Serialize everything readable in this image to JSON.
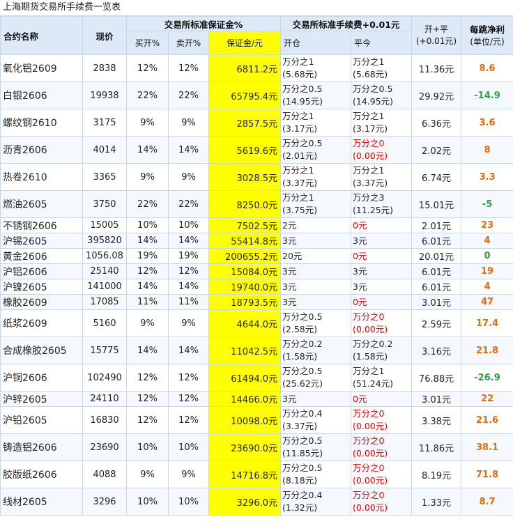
{
  "title": "上海期货交易所手续费一览表",
  "headers": {
    "name": "合约名称",
    "price": "现价",
    "margin_group": "交易所标准保证金%",
    "buy_open": "买开%",
    "sell_open": "卖开%",
    "margin": "保证金/元",
    "fee_group": "交易所标准手续费+0.01元",
    "open": "开仓",
    "close": "平今",
    "total_line1": "开+平",
    "total_line2": "(+0.01元)",
    "tick_line1": "每跳净利",
    "tick_line2": "(单位/元)"
  },
  "colors": {
    "header_bg": "#dde9f6",
    "margin_highlight": "#ffff00",
    "zero_fee": "#e00000",
    "tick_positive": "#e46c0a",
    "tick_negative": "#2ea043"
  },
  "rows": [
    {
      "name": "氧化铝2609",
      "price": "2838",
      "buy": "12%",
      "sell": "12%",
      "margin": "6811.2元",
      "open1": "万分之1",
      "open2": "(5.68元)",
      "close1": "万分之1",
      "close2": "(5.68元)",
      "close_zero": false,
      "total": "11.36元",
      "tick": "8.6",
      "sign": "pos"
    },
    {
      "name": "白银2606",
      "price": "19938",
      "buy": "22%",
      "sell": "22%",
      "margin": "65795.4元",
      "open1": "万分之0.5",
      "open2": "(14.95元)",
      "close1": "万分之0.5",
      "close2": "(14.95元)",
      "close_zero": false,
      "total": "29.92元",
      "tick": "-14.9",
      "sign": "neg"
    },
    {
      "name": "螺纹钢2610",
      "price": "3175",
      "buy": "9%",
      "sell": "9%",
      "margin": "2857.5元",
      "open1": "万分之1",
      "open2": "(3.17元)",
      "close1": "万分之1",
      "close2": "(3.17元)",
      "close_zero": false,
      "total": "6.36元",
      "tick": "3.6",
      "sign": "pos"
    },
    {
      "name": "沥青2606",
      "price": "4014",
      "buy": "14%",
      "sell": "14%",
      "margin": "5619.6元",
      "open1": "万分之0.5",
      "open2": "(2.01元)",
      "close1": "万分之0",
      "close2": "(0.00元)",
      "close_zero": true,
      "total": "2.02元",
      "tick": "8",
      "sign": "pos"
    },
    {
      "name": "热卷2610",
      "price": "3365",
      "buy": "9%",
      "sell": "9%",
      "margin": "3028.5元",
      "open1": "万分之1",
      "open2": "(3.37元)",
      "close1": "万分之1",
      "close2": "(3.37元)",
      "close_zero": false,
      "total": "6.74元",
      "tick": "3.3",
      "sign": "pos"
    },
    {
      "name": "燃油2605",
      "price": "3750",
      "buy": "22%",
      "sell": "22%",
      "margin": "8250.0元",
      "open1": "万分之1",
      "open2": "(3.75元)",
      "close1": "万分之3",
      "close2": "(11.25元)",
      "close_zero": false,
      "total": "15.01元",
      "tick": "-5",
      "sign": "neg"
    },
    {
      "name": "不锈钢2606",
      "price": "15005",
      "buy": "10%",
      "sell": "10%",
      "margin": "7502.5元",
      "open1": "2元",
      "open2": "",
      "close1": "0元",
      "close2": "",
      "close_zero": true,
      "total": "2.01元",
      "tick": "23",
      "sign": "pos"
    },
    {
      "name": "沪锡2605",
      "price": "395820",
      "buy": "14%",
      "sell": "14%",
      "margin": "55414.8元",
      "open1": "3元",
      "open2": "",
      "close1": "3元",
      "close2": "",
      "close_zero": false,
      "total": "6.01元",
      "tick": "4",
      "sign": "pos"
    },
    {
      "name": "黄金2606",
      "price": "1056.08",
      "buy": "19%",
      "sell": "19%",
      "margin": "200655.2元",
      "open1": "20元",
      "open2": "",
      "close1": "0元",
      "close2": "",
      "close_zero": true,
      "total": "20.01元",
      "tick": "0",
      "sign": "null"
    },
    {
      "name": "沪铝2606",
      "price": "25140",
      "buy": "12%",
      "sell": "12%",
      "margin": "15084.0元",
      "open1": "3元",
      "open2": "",
      "close1": "3元",
      "close2": "",
      "close_zero": false,
      "total": "6.01元",
      "tick": "19",
      "sign": "pos"
    },
    {
      "name": "沪镍2605",
      "price": "141000",
      "buy": "14%",
      "sell": "14%",
      "margin": "19740.0元",
      "open1": "3元",
      "open2": "",
      "close1": "3元",
      "close2": "",
      "close_zero": false,
      "total": "6.01元",
      "tick": "4",
      "sign": "pos"
    },
    {
      "name": "橡胶2609",
      "price": "17085",
      "buy": "11%",
      "sell": "11%",
      "margin": "18793.5元",
      "open1": "3元",
      "open2": "",
      "close1": "0元",
      "close2": "",
      "close_zero": true,
      "total": "3.01元",
      "tick": "47",
      "sign": "pos"
    },
    {
      "name": "纸浆2609",
      "price": "5160",
      "buy": "9%",
      "sell": "9%",
      "margin": "4644.0元",
      "open1": "万分之0.5",
      "open2": "(2.58元)",
      "close1": "万分之0",
      "close2": "(0.00元)",
      "close_zero": true,
      "total": "2.59元",
      "tick": "17.4",
      "sign": "pos"
    },
    {
      "name": "合成橡胶2605",
      "price": "15775",
      "buy": "14%",
      "sell": "14%",
      "margin": "11042.5元",
      "open1": "万分之0.2",
      "open2": "(1.58元)",
      "close1": "万分之0.2",
      "close2": "(1.58元)",
      "close_zero": false,
      "total": "3.16元",
      "tick": "21.8",
      "sign": "pos"
    },
    {
      "name": "沪铜2606",
      "price": "102490",
      "buy": "12%",
      "sell": "12%",
      "margin": "61494.0元",
      "open1": "万分之0.5",
      "open2": "(25.62元)",
      "close1": "万分之1",
      "close2": "(51.24元)",
      "close_zero": false,
      "total": "76.88元",
      "tick": "-26.9",
      "sign": "neg"
    },
    {
      "name": "沪锌2605",
      "price": "24110",
      "buy": "12%",
      "sell": "12%",
      "margin": "14466.0元",
      "open1": "3元",
      "open2": "",
      "close1": "0元",
      "close2": "",
      "close_zero": true,
      "total": "3.01元",
      "tick": "22",
      "sign": "pos"
    },
    {
      "name": "沪铅2605",
      "price": "16830",
      "buy": "12%",
      "sell": "12%",
      "margin": "10098.0元",
      "open1": "万分之0.4",
      "open2": "(3.37元)",
      "close1": "万分之0",
      "close2": "(0.00元)",
      "close_zero": true,
      "total": "3.38元",
      "tick": "21.6",
      "sign": "pos"
    },
    {
      "name": "铸造铝2606",
      "price": "23690",
      "buy": "10%",
      "sell": "10%",
      "margin": "23690.0元",
      "open1": "万分之0.5",
      "open2": "(11.85元)",
      "close1": "万分之0",
      "close2": "(0.00元)",
      "close_zero": true,
      "total": "11.86元",
      "tick": "38.1",
      "sign": "pos"
    },
    {
      "name": "胶版纸2606",
      "price": "4088",
      "buy": "9%",
      "sell": "9%",
      "margin": "14716.8元",
      "open1": "万分之0.5",
      "open2": "(8.18元)",
      "close1": "万分之0",
      "close2": "(0.00元)",
      "close_zero": true,
      "total": "8.19元",
      "tick": "71.8",
      "sign": "pos"
    },
    {
      "name": "线材2605",
      "price": "3296",
      "buy": "10%",
      "sell": "10%",
      "margin": "3296.0元",
      "open1": "万分之0.4",
      "open2": "(1.32元)",
      "close1": "万分之0",
      "close2": "(0.00元)",
      "close_zero": true,
      "total": "1.33元",
      "tick": "8.7",
      "sign": "pos"
    }
  ]
}
